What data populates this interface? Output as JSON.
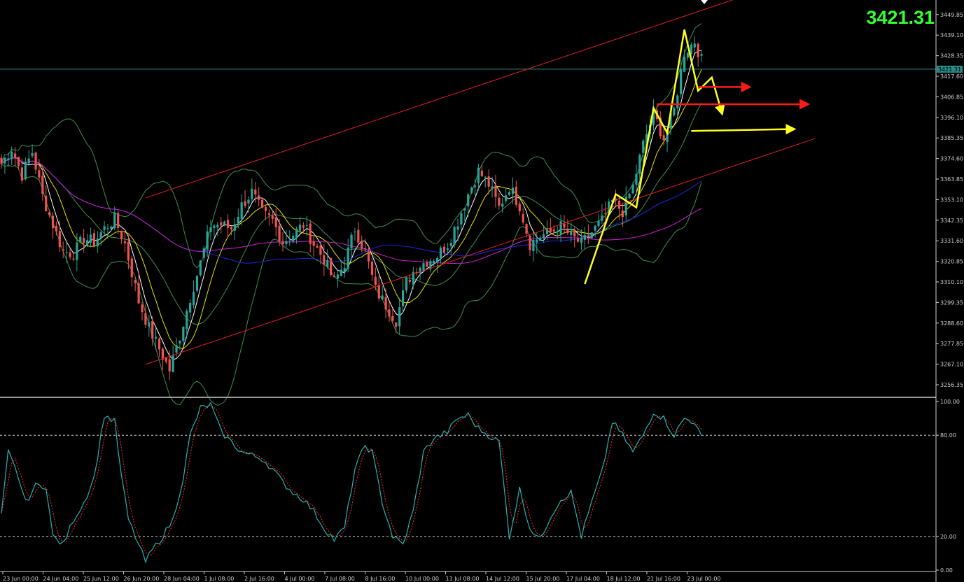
{
  "current_price": {
    "label": "3421.31",
    "value": 3421.31,
    "tag": "3421.31"
  },
  "colors": {
    "background": "#000000",
    "bull": "#26a69a",
    "bear": "#ef5350",
    "channel": "#e0201b",
    "ma_fast": "#ffffff",
    "ma_mid": "#e6e600",
    "ma_blue": "#1e28d8",
    "ma_magenta": "#cc22cc",
    "bollinger": "#3f8f55",
    "current_line": "#2a8a8a",
    "annotation_yellow": "#ffff1a",
    "annotation_red": "#ff1a1a",
    "stoch_main": "#2ab3b3",
    "stoch_signal": "#ff2a2a",
    "big_price": "#33ff33"
  },
  "chart_data": [
    {
      "type": "candlestick",
      "title": "",
      "y_ticks": [
        "3449.85",
        "3439.10",
        "3428.35",
        "3417.60",
        "3406.85",
        "3396.10",
        "3385.35",
        "3374.60",
        "3363.85",
        "3353.10",
        "3342.35",
        "3331.60",
        "3320.85",
        "3310.10",
        "3299.35",
        "3288.60",
        "3277.85",
        "3267.10",
        "3256.35"
      ],
      "ylim": [
        3250.5,
        3456.0
      ],
      "x_ticks": [
        "23 Jun 00:00",
        "24 Jun 04:00",
        "25 Jun 12:00",
        "26 Jun 20:00",
        "28 Jun 04:00",
        "1 Jul 08:00",
        "2 Jul 16:00",
        "4 Jul 00:00",
        "7 Jul 08:00",
        "8 Jul 16:00",
        "10 Jul 00:00",
        "11 Jul 08:00",
        "14 Jul 12:00",
        "15 Jul 20:00",
        "17 Jul 04:00",
        "18 Jul 12:00",
        "21 Jul 16:00",
        "23 Jul 00:00"
      ],
      "close_anchors": [
        [
          0,
          3372
        ],
        [
          3,
          3380
        ],
        [
          6,
          3366
        ],
        [
          9,
          3378
        ],
        [
          12,
          3355
        ],
        [
          15,
          3340
        ],
        [
          18,
          3326
        ],
        [
          21,
          3325
        ],
        [
          24,
          3333
        ],
        [
          27,
          3331
        ],
        [
          30,
          3338
        ],
        [
          33,
          3343
        ],
        [
          36,
          3330
        ],
        [
          40,
          3300
        ],
        [
          43,
          3286
        ],
        [
          46,
          3275
        ],
        [
          49,
          3264
        ],
        [
          52,
          3282
        ],
        [
          55,
          3302
        ],
        [
          58,
          3320
        ],
        [
          61,
          3340
        ],
        [
          64,
          3340
        ],
        [
          67,
          3338
        ],
        [
          70,
          3350
        ],
        [
          73,
          3357
        ],
        [
          76,
          3346
        ],
        [
          79,
          3342
        ],
        [
          82,
          3331
        ],
        [
          85,
          3335
        ],
        [
          88,
          3340
        ],
        [
          91,
          3330
        ],
        [
          94,
          3322
        ],
        [
          97,
          3310
        ],
        [
          100,
          3320
        ],
        [
          103,
          3338
        ],
        [
          106,
          3326
        ],
        [
          109,
          3306
        ],
        [
          112,
          3298
        ],
        [
          115,
          3290
        ],
        [
          118,
          3310
        ],
        [
          121,
          3318
        ],
        [
          124,
          3321
        ],
        [
          127,
          3324
        ],
        [
          130,
          3330
        ],
        [
          133,
          3342
        ],
        [
          136,
          3356
        ],
        [
          139,
          3368
        ],
        [
          142,
          3361
        ],
        [
          145,
          3349
        ],
        [
          148,
          3360
        ],
        [
          151,
          3350
        ],
        [
          154,
          3330
        ],
        [
          157,
          3334
        ],
        [
          160,
          3336
        ],
        [
          163,
          3339
        ],
        [
          166,
          3334
        ],
        [
          169,
          3330
        ],
        [
          172,
          3336
        ],
        [
          175,
          3342
        ],
        [
          178,
          3352
        ],
        [
          181,
          3347
        ],
        [
          184,
          3360
        ],
        [
          187,
          3382
        ],
        [
          190,
          3398
        ],
        [
          193,
          3385
        ],
        [
          196,
          3400
        ],
        [
          199,
          3430
        ],
        [
          202,
          3436
        ],
        [
          204,
          3426
        ]
      ],
      "moving_averages": [
        {
          "color": "ma_fast",
          "period": 5
        },
        {
          "color": "ma_mid",
          "period": 10
        },
        {
          "color": "ma_blue",
          "period": 60
        },
        {
          "color": "ma_magenta",
          "period": 100
        }
      ],
      "bollinger": {
        "period": 20,
        "stddev": 2
      },
      "channel_lines": [
        {
          "from": [
            42,
            3267
          ],
          "to": [
            237,
            3385
          ]
        },
        {
          "from": [
            42,
            3354
          ],
          "to": [
            237,
            3472
          ]
        }
      ],
      "annotations": {
        "yellow_zigzag": [
          [
            170,
            3309
          ],
          [
            179,
            3356
          ],
          [
            185,
            3349
          ],
          [
            190,
            3401
          ],
          [
            194,
            3388
          ],
          [
            199,
            3442
          ],
          [
            203,
            3410
          ],
          [
            207,
            3417
          ],
          [
            210,
            3398
          ]
        ],
        "yellow_arrow": {
          "from": [
            201,
            3389
          ],
          "to": [
            231,
            3390
          ]
        },
        "red_arrows": [
          {
            "from": [
              191,
              3403
            ],
            "to": [
              235,
              3403
            ]
          },
          {
            "from": [
              203,
              3412
            ],
            "to": [
              218,
              3412
            ]
          }
        ]
      }
    },
    {
      "type": "line",
      "title": "",
      "ylim": [
        0,
        100
      ],
      "y_ticks": [
        "100.00",
        "80.00",
        "20.00",
        "0.00"
      ],
      "levels": [
        80,
        20
      ],
      "series": [
        {
          "color": "stoch_main",
          "anchors": [
            [
              0,
              32
            ],
            [
              2,
              70
            ],
            [
              5,
              55
            ],
            [
              7,
              40
            ],
            [
              10,
              50
            ],
            [
              13,
              50
            ],
            [
              15,
              20
            ],
            [
              18,
              15
            ],
            [
              21,
              30
            ],
            [
              24,
              40
            ],
            [
              27,
              55
            ],
            [
              30,
              92
            ],
            [
              33,
              88
            ],
            [
              35,
              55
            ],
            [
              37,
              30
            ],
            [
              40,
              15
            ],
            [
              42,
              5
            ],
            [
              44,
              12
            ],
            [
              47,
              20
            ],
            [
              50,
              30
            ],
            [
              53,
              55
            ],
            [
              55,
              80
            ],
            [
              58,
              96
            ],
            [
              61,
              98
            ],
            [
              64,
              82
            ],
            [
              67,
              76
            ],
            [
              70,
              70
            ],
            [
              73,
              68
            ],
            [
              76,
              66
            ],
            [
              79,
              60
            ],
            [
              82,
              52
            ],
            [
              85,
              46
            ],
            [
              88,
              42
            ],
            [
              91,
              35
            ],
            [
              94,
              25
            ],
            [
              97,
              18
            ],
            [
              100,
              25
            ],
            [
              103,
              60
            ],
            [
              106,
              74
            ],
            [
              108,
              70
            ],
            [
              111,
              40
            ],
            [
              114,
              20
            ],
            [
              117,
              15
            ],
            [
              120,
              35
            ],
            [
              123,
              70
            ],
            [
              126,
              78
            ],
            [
              130,
              82
            ],
            [
              133,
              90
            ],
            [
              136,
              92
            ],
            [
              139,
              84
            ],
            [
              142,
              80
            ],
            [
              145,
              76
            ],
            [
              148,
              20
            ],
            [
              151,
              48
            ],
            [
              154,
              25
            ],
            [
              157,
              18
            ],
            [
              160,
              32
            ],
            [
              163,
              42
            ],
            [
              166,
              46
            ],
            [
              169,
              20
            ],
            [
              172,
              40
            ],
            [
              175,
              58
            ],
            [
              178,
              88
            ],
            [
              181,
              80
            ],
            [
              184,
              70
            ],
            [
              187,
              80
            ],
            [
              190,
              94
            ],
            [
              193,
              90
            ],
            [
              196,
              80
            ],
            [
              199,
              90
            ],
            [
              202,
              88
            ],
            [
              204,
              78
            ]
          ]
        },
        {
          "color": "stoch_signal",
          "lag": 1
        }
      ]
    }
  ]
}
